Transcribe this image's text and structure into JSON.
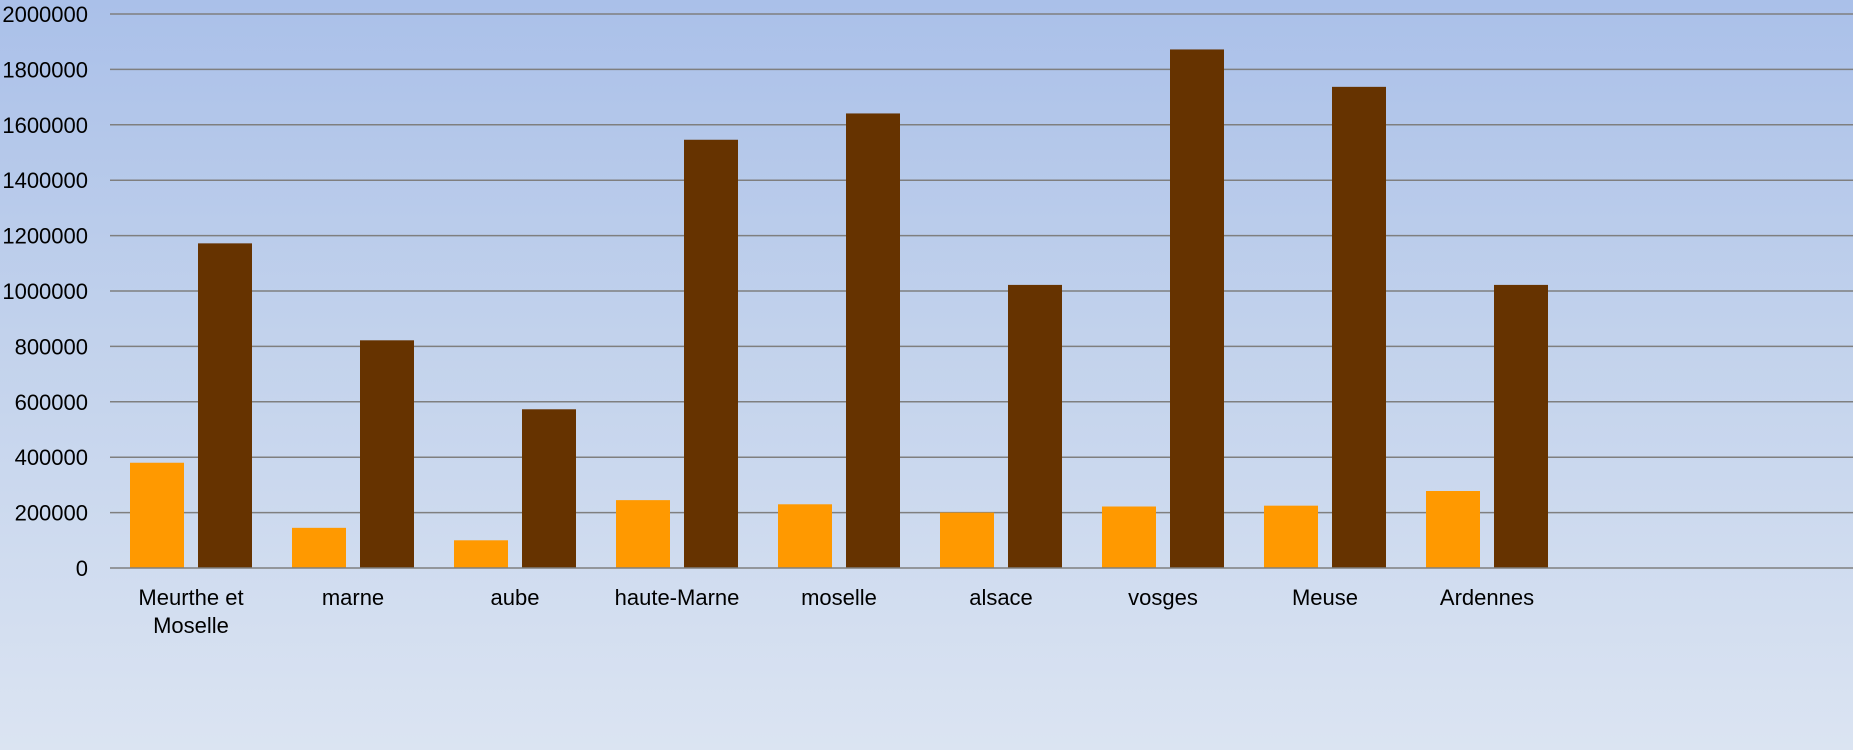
{
  "chart_data": {
    "type": "bar",
    "categories": [
      "Meurthe et Moselle",
      "marne",
      "aube",
      "haute-Marne",
      "moselle",
      "alsace",
      "vosges",
      "Meuse",
      "Ardennes"
    ],
    "category_label_lines": [
      [
        "Meurthe et",
        "Moselle"
      ],
      [
        "marne"
      ],
      [
        "aube"
      ],
      [
        "haute-Marne"
      ],
      [
        "moselle"
      ],
      [
        "alsace"
      ],
      [
        "vosges"
      ],
      [
        "Meuse"
      ],
      [
        "Ardennes"
      ]
    ],
    "series": [
      {
        "color": "#ff9900",
        "values": [
          380000,
          145000,
          100000,
          245000,
          230000,
          200000,
          222000,
          225000,
          278000
        ]
      },
      {
        "color": "#663300",
        "values": [
          1172000,
          822000,
          573000,
          1546000,
          1641000,
          1022000,
          1872000,
          1737000,
          1022000
        ]
      }
    ],
    "ylim": [
      0,
      2000000
    ],
    "yticks": [
      0,
      200000,
      400000,
      600000,
      800000,
      1000000,
      1200000,
      1400000,
      1600000,
      1800000,
      2000000
    ],
    "grid": true,
    "legend": "none",
    "title": "",
    "xlabel": "",
    "ylabel": ""
  }
}
